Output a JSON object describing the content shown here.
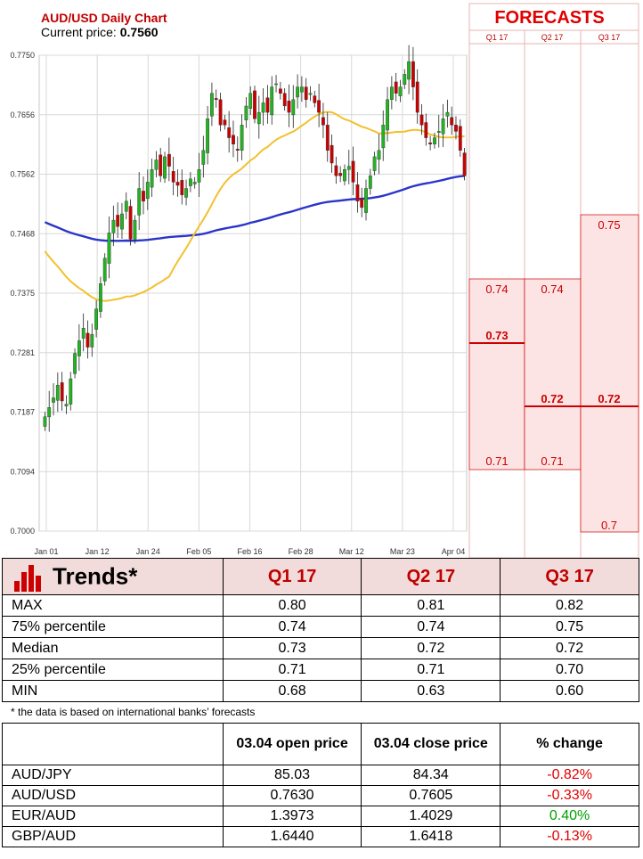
{
  "chart_data": {
    "type": "candlestick",
    "title": "AUD/USD Daily Chart",
    "price_label": "Current price:",
    "price_value": "0.7560",
    "y_ticks": [
      "0.7750",
      "0.7656",
      "0.7562",
      "0.7468",
      "0.7375",
      "0.7281",
      "0.7187",
      "0.7094",
      "0.7000"
    ],
    "ylim": [
      0.7,
      0.775
    ],
    "x_ticks": [
      "Jan 01",
      "Jan 12",
      "Jan 24",
      "Feb 05",
      "Feb 16",
      "Feb 28",
      "Mar 12",
      "Mar 23",
      "Apr 04"
    ],
    "closes": [
      0.718,
      0.7195,
      0.721,
      0.723,
      0.7205,
      0.72,
      0.724,
      0.728,
      0.73,
      0.732,
      0.729,
      0.731,
      0.735,
      0.739,
      0.743,
      0.747,
      0.749,
      0.748,
      0.75,
      0.752,
      0.746,
      0.749,
      0.754,
      0.752,
      0.755,
      0.757,
      0.7585,
      0.756,
      0.759,
      0.7575,
      0.755,
      0.7545,
      0.753,
      0.754,
      0.7555,
      0.755,
      0.757,
      0.76,
      0.765,
      0.769,
      0.768,
      0.764,
      0.764,
      0.762,
      0.761,
      0.76,
      0.764,
      0.767,
      0.769,
      0.765,
      0.766,
      0.7675,
      0.766,
      0.77,
      0.7705,
      0.769,
      0.767,
      0.766,
      0.768,
      0.77,
      0.77,
      0.768,
      0.769,
      0.7675,
      0.766,
      0.764,
      0.76,
      0.758,
      0.756,
      0.756,
      0.757,
      0.7575,
      0.755,
      0.752,
      0.751,
      0.754,
      0.756,
      0.759,
      0.76,
      0.764,
      0.768,
      0.77,
      0.769,
      0.77,
      0.772,
      0.774,
      0.77,
      0.766,
      0.764,
      0.762,
      0.761,
      0.762,
      0.763,
      0.765,
      0.766,
      0.764,
      0.763,
      0.76,
      0.756
    ],
    "series": [
      {
        "name": "",
        "color": "#f2c12e"
      },
      {
        "name": "",
        "color": "#2a35c9"
      }
    ],
    "colors": {
      "up": "#22b422",
      "down": "#cc0000"
    }
  },
  "forecasts": {
    "title": "FORECASTS",
    "quarters": [
      "Q1 17",
      "Q2 17",
      "Q3 17"
    ],
    "q1": {
      "high": "0.74",
      "median": "0.73",
      "low": "0.71"
    },
    "q2": {
      "high": "0.74",
      "median": "0.72",
      "low": "0.71"
    },
    "q3": {
      "high": "0.75",
      "median": "0.72",
      "low": "0.7"
    }
  },
  "trends": {
    "title": "Trends*",
    "headers": [
      "Q1 17",
      "Q2 17",
      "Q3 17"
    ],
    "rows": [
      {
        "label": "MAX",
        "values": [
          "0.80",
          "0.81",
          "0.82"
        ]
      },
      {
        "label": "75% percentile",
        "values": [
          "0.74",
          "0.74",
          "0.75"
        ]
      },
      {
        "label": "Median",
        "values": [
          "0.73",
          "0.72",
          "0.72"
        ]
      },
      {
        "label": "25% percentile",
        "values": [
          "0.71",
          "0.71",
          "0.70"
        ]
      },
      {
        "label": "MIN",
        "values": [
          "0.68",
          "0.63",
          "0.60"
        ]
      }
    ]
  },
  "footnote": "* the data is based on international banks’ forecasts",
  "prices": {
    "headers": [
      "03.04 open price",
      "03.04 close price",
      "% change"
    ],
    "rows": [
      {
        "pair": "AUD/JPY",
        "open": "85.03",
        "close": "84.34",
        "change": "-0.82%",
        "dir": "neg"
      },
      {
        "pair": "AUD/USD",
        "open": "0.7630",
        "close": "0.7605",
        "change": "-0.33%",
        "dir": "neg"
      },
      {
        "pair": "EUR/AUD",
        "open": "1.3973",
        "close": "1.4029",
        "change": "0.40%",
        "dir": "pos"
      },
      {
        "pair": "GBP/AUD",
        "open": "1.6440",
        "close": "1.6418",
        "change": "-0.13%",
        "dir": "neg"
      }
    ]
  }
}
